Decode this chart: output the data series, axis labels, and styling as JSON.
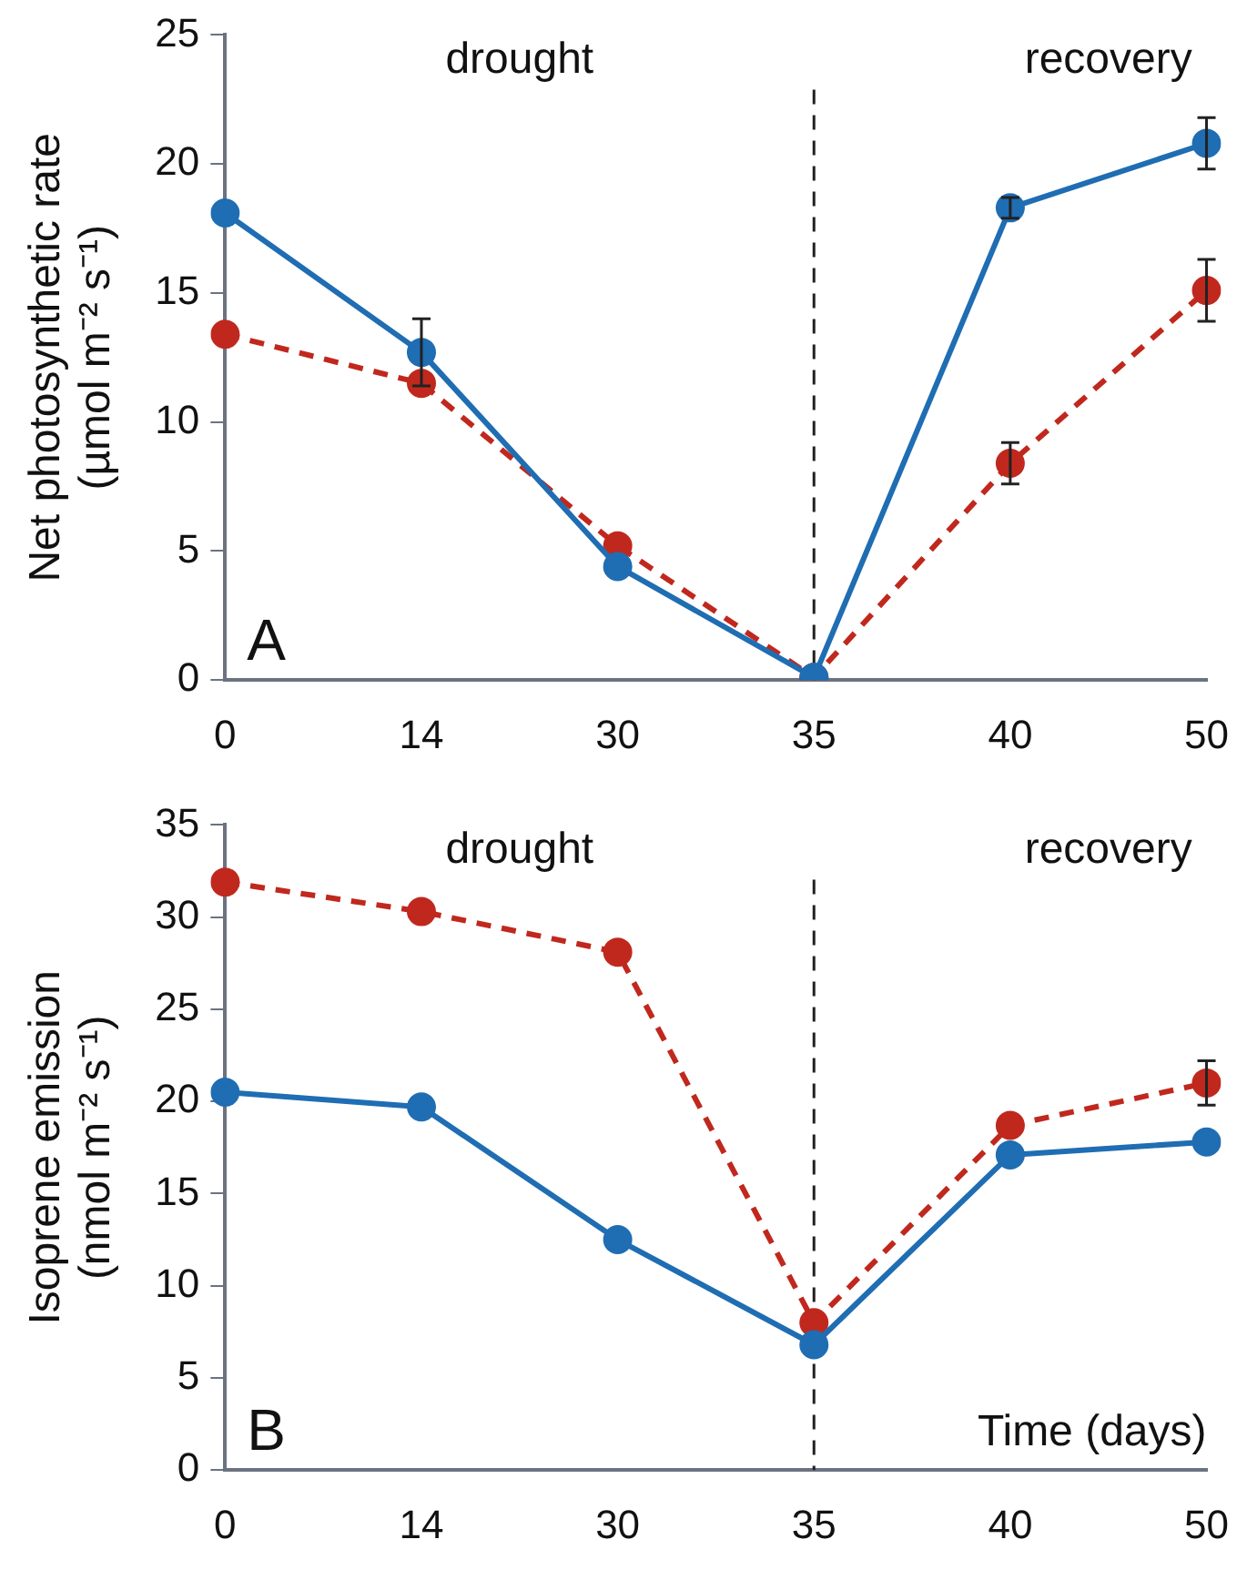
{
  "chart_data": [
    {
      "type": "line",
      "ylabel": "Net photosynthetic rate\n(µmol m⁻² s⁻¹)",
      "categories": [
        "0",
        "14",
        "30",
        "35",
        "40",
        "50"
      ],
      "series": [
        {
          "color": "#1f6db3",
          "line_style": "solid",
          "values": [
            18.1,
            12.7,
            4.4,
            0.1,
            18.3,
            20.8
          ],
          "errors": [
            null,
            1.3,
            null,
            null,
            0.4,
            1.0
          ]
        },
        {
          "color": "#c0281e",
          "line_style": "dashed",
          "values": [
            13.4,
            11.5,
            5.2,
            0.1,
            8.4,
            15.1
          ],
          "errors": [
            null,
            null,
            null,
            null,
            0.8,
            1.2
          ]
        }
      ],
      "ylim": [
        0,
        25
      ],
      "yticks": [
        0,
        5,
        10,
        15,
        20,
        25
      ],
      "grid": false,
      "legend": false,
      "marker": "circle",
      "ref_lines": [
        {
          "axis": "x",
          "value": "35",
          "color": "#222222",
          "line_style": "dashed"
        }
      ],
      "annotations": [
        "drought",
        "recovery",
        "A"
      ]
    },
    {
      "type": "line",
      "ylabel": "Isoprene emission\n(nmol m⁻² s⁻¹)",
      "xlabel": "Time (days)",
      "categories": [
        "0",
        "14",
        "30",
        "35",
        "40",
        "50"
      ],
      "series": [
        {
          "color": "#1f6db3",
          "line_style": "solid",
          "values": [
            20.5,
            19.7,
            12.5,
            6.8,
            17.1,
            17.8
          ]
        },
        {
          "color": "#c0281e",
          "line_style": "dashed",
          "values": [
            31.9,
            30.3,
            28.1,
            8.0,
            18.7,
            21.0
          ],
          "errors": [
            null,
            null,
            null,
            null,
            null,
            1.2
          ]
        }
      ],
      "ylim": [
        0,
        35
      ],
      "yticks": [
        0,
        5,
        10,
        15,
        20,
        25,
        30,
        35
      ],
      "grid": false,
      "legend": false,
      "marker": "circle",
      "ref_lines": [
        {
          "axis": "x",
          "value": "35",
          "color": "#222222",
          "line_style": "dashed"
        }
      ],
      "annotations": [
        "drought",
        "recovery",
        "B"
      ]
    }
  ]
}
